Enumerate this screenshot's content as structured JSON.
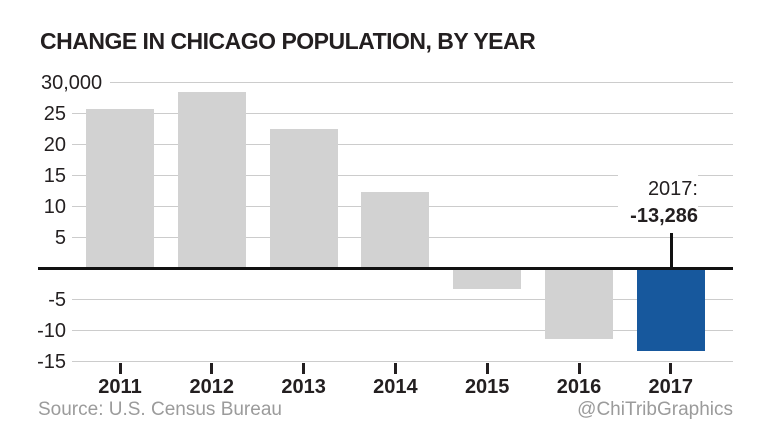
{
  "chart_data": {
    "type": "bar",
    "title": "CHANGE IN CHICAGO POPULATION, BY YEAR",
    "categories": [
      "2011",
      "2012",
      "2013",
      "2014",
      "2015",
      "2016",
      "2017"
    ],
    "values": [
      25800,
      28500,
      22500,
      12400,
      -3300,
      -11300,
      -13286
    ],
    "ylim": [
      -15000,
      30000
    ],
    "yticks": [
      {
        "value": 30000,
        "label": "30,000"
      },
      {
        "value": 25000,
        "label": "25"
      },
      {
        "value": 20000,
        "label": "20"
      },
      {
        "value": 15000,
        "label": "15"
      },
      {
        "value": 10000,
        "label": "10"
      },
      {
        "value": 5000,
        "label": "5"
      },
      {
        "value": -5000,
        "label": "-5"
      },
      {
        "value": -10000,
        "label": "-10"
      },
      {
        "value": -15000,
        "label": "-15"
      }
    ],
    "grid": true,
    "legend": false,
    "bar_color": "#d2d2d2",
    "highlight_color": "#17589d",
    "highlight_category": "2017",
    "annotation": {
      "line1": "2017:",
      "line2": "-13,286",
      "category": "2017"
    },
    "source": "Source: U.S. Census Bureau",
    "credit": "@ChiTribGraphics",
    "text_color": "#231f20",
    "grid_color": "#cccccc",
    "muted_text_color": "#9b9b9b"
  }
}
